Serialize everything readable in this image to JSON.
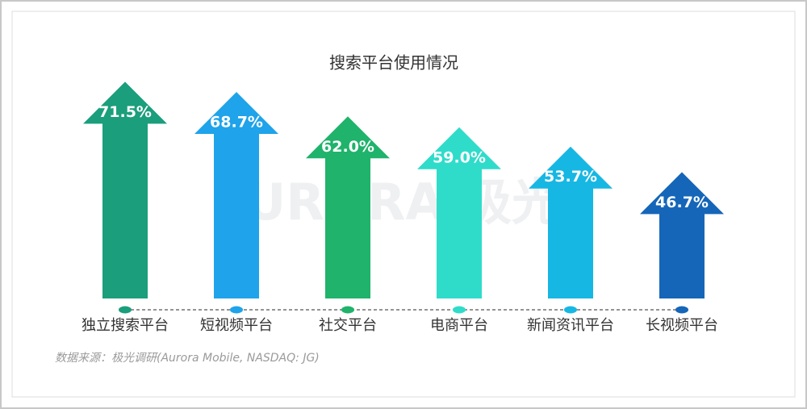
{
  "chart_data": {
    "type": "arrow-bar",
    "title": "搜索平台使用情况",
    "categories": [
      "独立搜索平台",
      "短视频平台",
      "社交平台",
      "电商平台",
      "新闻资讯平台",
      "长视频平台"
    ],
    "values": [
      71.5,
      68.7,
      62.0,
      59.0,
      53.7,
      46.7
    ],
    "value_labels": [
      "71.5%",
      "68.7%",
      "62.0%",
      "59.0%",
      "53.7%",
      "46.7%"
    ],
    "colors": [
      "#1b9e7c",
      "#1fa3ea",
      "#1fb36b",
      "#2fdcca",
      "#17b7e3",
      "#1566b9"
    ],
    "ylim": [
      12,
      80
    ],
    "watermark": "URORA 极光",
    "source": "数据来源：极光调研(Aurora Mobile, NASDAQ: JG)"
  }
}
